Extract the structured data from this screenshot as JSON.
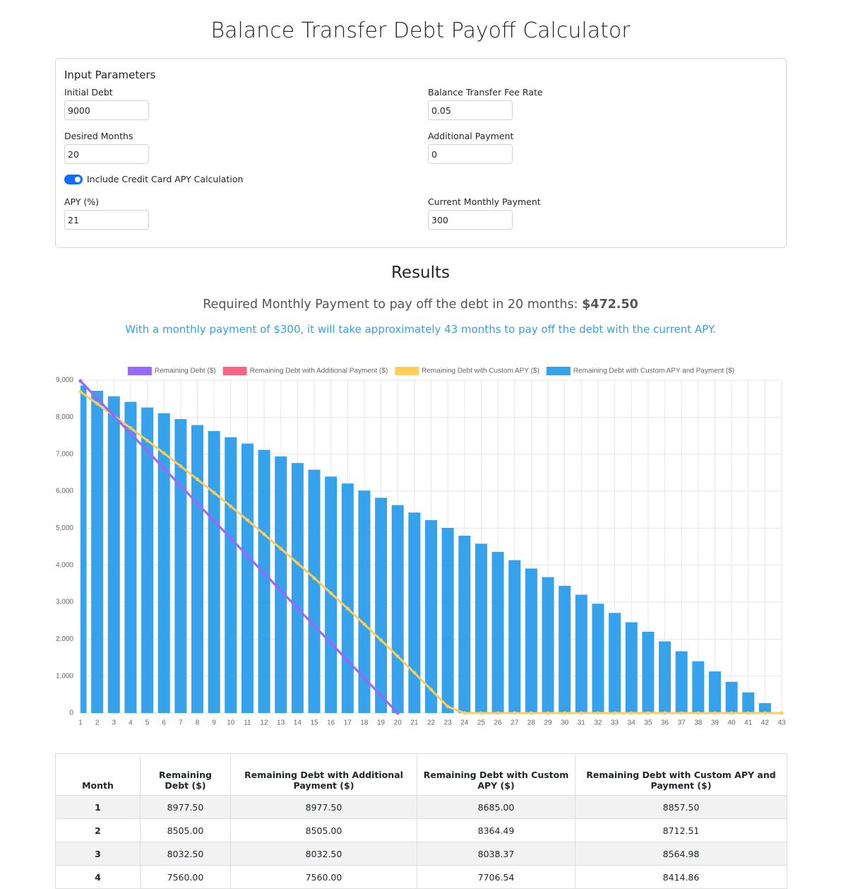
{
  "header": {
    "title": "Balance Transfer Debt Payoff Calculator"
  },
  "form": {
    "title": "Input Parameters",
    "fields": [
      {
        "label": "Initial Debt",
        "value": 9000
      },
      {
        "label": "Balance Transfer Fee Rate",
        "value": 0.05
      },
      {
        "label": "Desired Months",
        "value": 20
      },
      {
        "label": "Additional Payment",
        "value": 0
      },
      {
        "label": "APY (%)",
        "value": 21
      },
      {
        "label": "Current Monthly Payment",
        "value": 300
      }
    ],
    "toggle": {
      "label": "Include Credit Card APY Calculation",
      "on": true
    }
  },
  "results": {
    "title": "Results",
    "required_text": "Required Monthly Payment to pay off the debt in 20 months:",
    "required_amount": "$472.50",
    "note": "With a monthly payment of $300, it will take approximately 43 months to pay off the debt with the current APY."
  },
  "chart_data": {
    "type": "bar",
    "categories": [
      1,
      2,
      3,
      4,
      5,
      6,
      7,
      8,
      9,
      10,
      11,
      12,
      13,
      14,
      15,
      16,
      17,
      18,
      19,
      20,
      21,
      22,
      23,
      24,
      25,
      26,
      27,
      28,
      29,
      30,
      31,
      32,
      33,
      34,
      35,
      36,
      37,
      38,
      39,
      40,
      41,
      42,
      43
    ],
    "series": [
      {
        "name": "Remaining Debt ($)",
        "type": "line",
        "color": "#9966ff",
        "values": [
          8977.5,
          8505,
          8032.5,
          7560,
          7087.5,
          6615,
          6142.5,
          5670,
          5197.5,
          4725,
          4252.5,
          3780,
          3307.5,
          2835,
          2362.5,
          1890,
          1417.5,
          945,
          472.5,
          0,
          null,
          null,
          null,
          null,
          null,
          null,
          null,
          null,
          null,
          null,
          null,
          null,
          null,
          null,
          null,
          null,
          null,
          null,
          null,
          null,
          null,
          null,
          null
        ]
      },
      {
        "name": "Remaining Debt with Additional Payment ($)",
        "type": "line",
        "color": "#ff6384",
        "values": [
          8977.5,
          8505,
          8032.5,
          7560,
          7087.5,
          6615,
          6142.5,
          5670,
          5197.5,
          4725,
          4252.5,
          3780,
          3307.5,
          2835,
          2362.5,
          1890,
          1417.5,
          945,
          472.5,
          0,
          null,
          null,
          null,
          null,
          null,
          null,
          null,
          null,
          null,
          null,
          null,
          null,
          null,
          null,
          null,
          null,
          null,
          null,
          null,
          null,
          null,
          null,
          null
        ]
      },
      {
        "name": "Remaining Debt with Custom APY ($)",
        "type": "line",
        "color": "#ffcd56",
        "values": [
          8685,
          8364.49,
          8038.37,
          7706.54,
          7368.9,
          7025.36,
          6675.8,
          6320.13,
          5958.23,
          5590,
          5215.33,
          4834.1,
          4446.2,
          4051.51,
          3649.91,
          3241.29,
          2825.51,
          2402.46,
          1972,
          1534.01,
          1088.36,
          634.91,
          173.52,
          0,
          0,
          0,
          0,
          0,
          0,
          0,
          0,
          0,
          0,
          0,
          0,
          0,
          0,
          0,
          0,
          0,
          0,
          0,
          0
        ]
      },
      {
        "name": "Remaining Debt with Custom APY and Payment ($)",
        "type": "bar",
        "color": "#36a2eb",
        "values": [
          8857.5,
          8712.51,
          8564.98,
          8414.86,
          8262.12,
          8106.71,
          7948.58,
          7787.68,
          7623.97,
          7457.39,
          7287.9,
          7115.44,
          6939.96,
          6761.41,
          6579.73,
          6394.88,
          6206.79,
          6015.41,
          5820.68,
          5622.54,
          5420.94,
          5215.81,
          5007.09,
          4794.71,
          4578.62,
          4358.75,
          4135.03,
          3907.39,
          3675.77,
          3440.1,
          3200.3,
          2956.31,
          2708.04,
          2455.43,
          2198.4,
          1936.87,
          1670.77,
          1400.01,
          1124.51,
          844.19,
          558.96,
          268.74,
          0
        ]
      }
    ],
    "ylim": [
      0,
      9000
    ],
    "yticks": [
      0,
      {
        "value": 1000,
        "label": "1,000"
      },
      {
        "value": 2000,
        "label": "2,000"
      },
      {
        "value": 3000,
        "label": "3,000"
      },
      {
        "value": 4000,
        "label": "4,000"
      },
      {
        "value": 5000,
        "label": "5,000"
      },
      {
        "value": 6000,
        "label": "6,000"
      },
      {
        "value": 7000,
        "label": "7,000"
      },
      {
        "value": 8000,
        "label": "8,000"
      },
      {
        "value": 9000,
        "label": "9,000"
      }
    ],
    "grid": true,
    "legend": "top"
  },
  "table": {
    "headers": [
      "Month",
      "Remaining Debt ($)",
      "Remaining Debt with Additional Payment ($)",
      "Remaining Debt with Custom APY ($)",
      "Remaining Debt with Custom APY and Payment ($)"
    ],
    "rows": [
      [
        1,
        "8977.50",
        "8977.50",
        "8685.00",
        "8857.50"
      ],
      [
        2,
        "8505.00",
        "8505.00",
        "8364.49",
        "8712.51"
      ],
      [
        3,
        "8032.50",
        "8032.50",
        "8038.37",
        "8564.98"
      ],
      [
        4,
        "7560.00",
        "7560.00",
        "7706.54",
        "8414.86"
      ]
    ]
  }
}
